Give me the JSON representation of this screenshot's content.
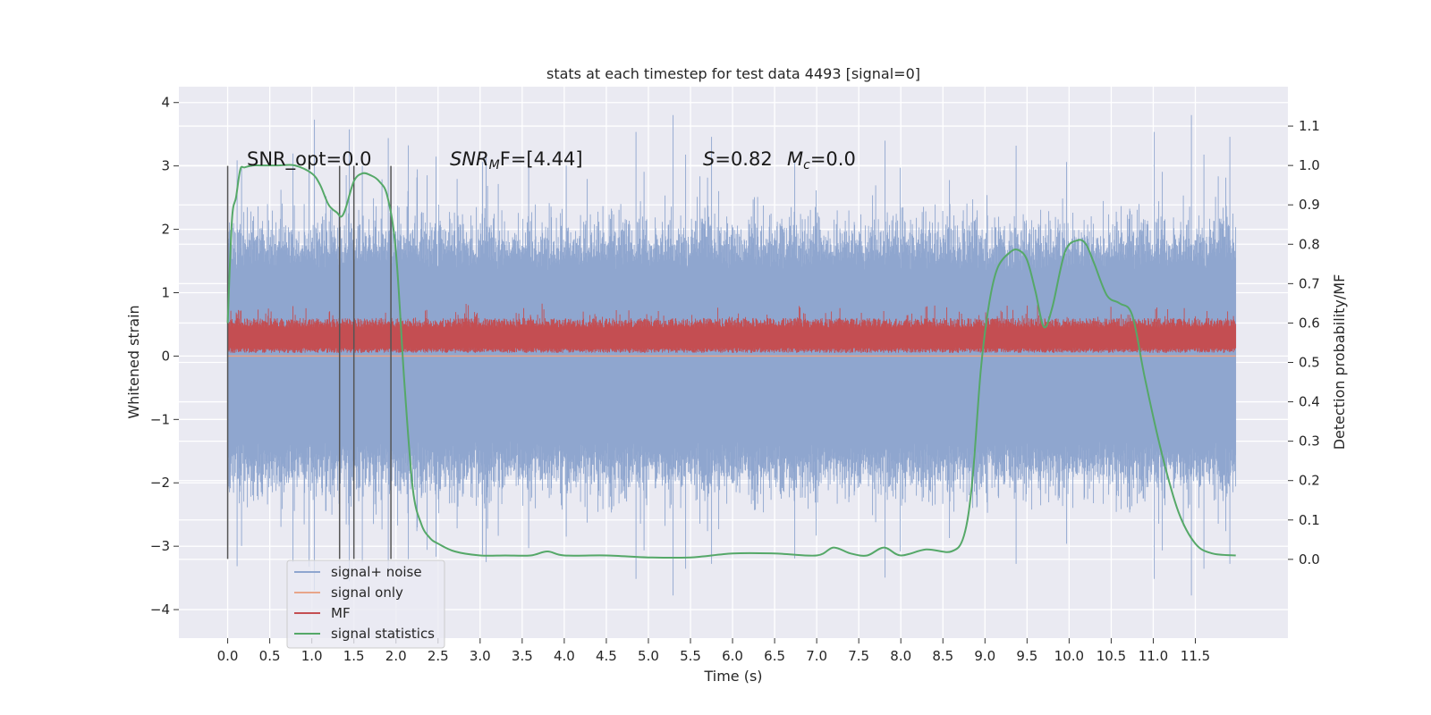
{
  "chart_data": {
    "type": "line",
    "title": "stats at each timestep for test data 4493 [signal=0]",
    "xlabel": "Time (s)",
    "ylabel": "Whitened strain",
    "ylabel_right": "Detection probability/MF",
    "xlim": [
      -0.58,
      12.6
    ],
    "ylim": [
      -4.45,
      4.25
    ],
    "ylim_right": [
      -0.2,
      1.2
    ],
    "x_ticks": [
      "0.0",
      "0.5",
      "1.0",
      "1.5",
      "2.0",
      "2.5",
      "3.0",
      "3.5",
      "4.0",
      "4.5",
      "5.0",
      "5.5",
      "6.0",
      "6.5",
      "7.0",
      "7.5",
      "8.0",
      "8.5",
      "9.0",
      "9.5",
      "10.0",
      "10.5",
      "11.0",
      "11.5"
    ],
    "y_ticks": [
      "4",
      "3",
      "2",
      "1",
      "0",
      "−1",
      "−2",
      "−3",
      "−4"
    ],
    "y_right_ticks": [
      "1.1",
      "1.0",
      "0.9",
      "0.8",
      "0.7",
      "0.6",
      "0.5",
      "0.4",
      "0.3",
      "0.2",
      "0.1",
      "0.0"
    ],
    "grid": true,
    "legend_placement": "lower-left",
    "annotations": {
      "snr_opt": "SNR_opt=0.0",
      "snr_mf_sym": "SNR",
      "snr_mf_sub": "M",
      "snr_mf_tail": "F=[4.44]",
      "s_sym": "S",
      "s_val": "=0.82",
      "mc_sym": "M",
      "mc_sub": "c",
      "mc_val": "=0.0"
    },
    "markers_x": [
      0.0,
      1.33,
      1.5,
      1.94
    ],
    "markers_range": [
      -3.2,
      3.0
    ],
    "series": [
      {
        "name": "signal+ noise",
        "color": "#8fa6cf",
        "description": "whitened noise, amplitude mostly within ±2, peaks near ±3.9",
        "x_range": [
          0.0,
          11.98
        ],
        "y_range": [
          -3.9,
          3.9
        ]
      },
      {
        "name": "signal only",
        "color": "#e8a58a",
        "x_range": [
          0.0,
          11.98
        ],
        "values_constant": 0.0
      },
      {
        "name": "MF",
        "color": "#c44e52",
        "x_range": [
          0.0,
          11.98
        ],
        "y_range": [
          0.05,
          0.85
        ]
      },
      {
        "name": "signal statistics",
        "color": "#55a868",
        "axis": "right",
        "x": [
          0.0,
          0.05,
          0.1,
          0.15,
          0.2,
          0.3,
          0.4,
          0.6,
          0.8,
          1.0,
          1.1,
          1.2,
          1.3,
          1.35,
          1.4,
          1.5,
          1.6,
          1.7,
          1.8,
          1.9,
          2.0,
          2.1,
          2.2,
          2.3,
          2.4,
          2.5,
          2.7,
          3.0,
          3.3,
          3.6,
          3.8,
          4.0,
          4.5,
          5.0,
          5.5,
          6.0,
          6.5,
          7.0,
          7.2,
          7.4,
          7.6,
          7.8,
          8.0,
          8.3,
          8.6,
          8.75,
          8.85,
          8.95,
          9.05,
          9.15,
          9.3,
          9.4,
          9.5,
          9.6,
          9.7,
          9.8,
          9.95,
          10.1,
          10.2,
          10.3,
          10.45,
          10.6,
          10.75,
          10.9,
          11.1,
          11.3,
          11.5,
          11.7,
          11.98
        ],
        "values": [
          0.6,
          0.86,
          0.92,
          0.99,
          0.995,
          1.0,
          1.0,
          1.0,
          1.0,
          0.98,
          0.95,
          0.9,
          0.88,
          0.87,
          0.89,
          0.96,
          0.98,
          0.975,
          0.96,
          0.92,
          0.78,
          0.45,
          0.18,
          0.09,
          0.055,
          0.04,
          0.02,
          0.01,
          0.01,
          0.01,
          0.02,
          0.01,
          0.01,
          0.005,
          0.005,
          0.015,
          0.015,
          0.01,
          0.03,
          0.015,
          0.01,
          0.03,
          0.01,
          0.025,
          0.02,
          0.06,
          0.2,
          0.48,
          0.65,
          0.74,
          0.78,
          0.785,
          0.76,
          0.68,
          0.59,
          0.64,
          0.78,
          0.81,
          0.8,
          0.75,
          0.67,
          0.65,
          0.62,
          0.46,
          0.27,
          0.12,
          0.04,
          0.015,
          0.01
        ]
      }
    ]
  }
}
